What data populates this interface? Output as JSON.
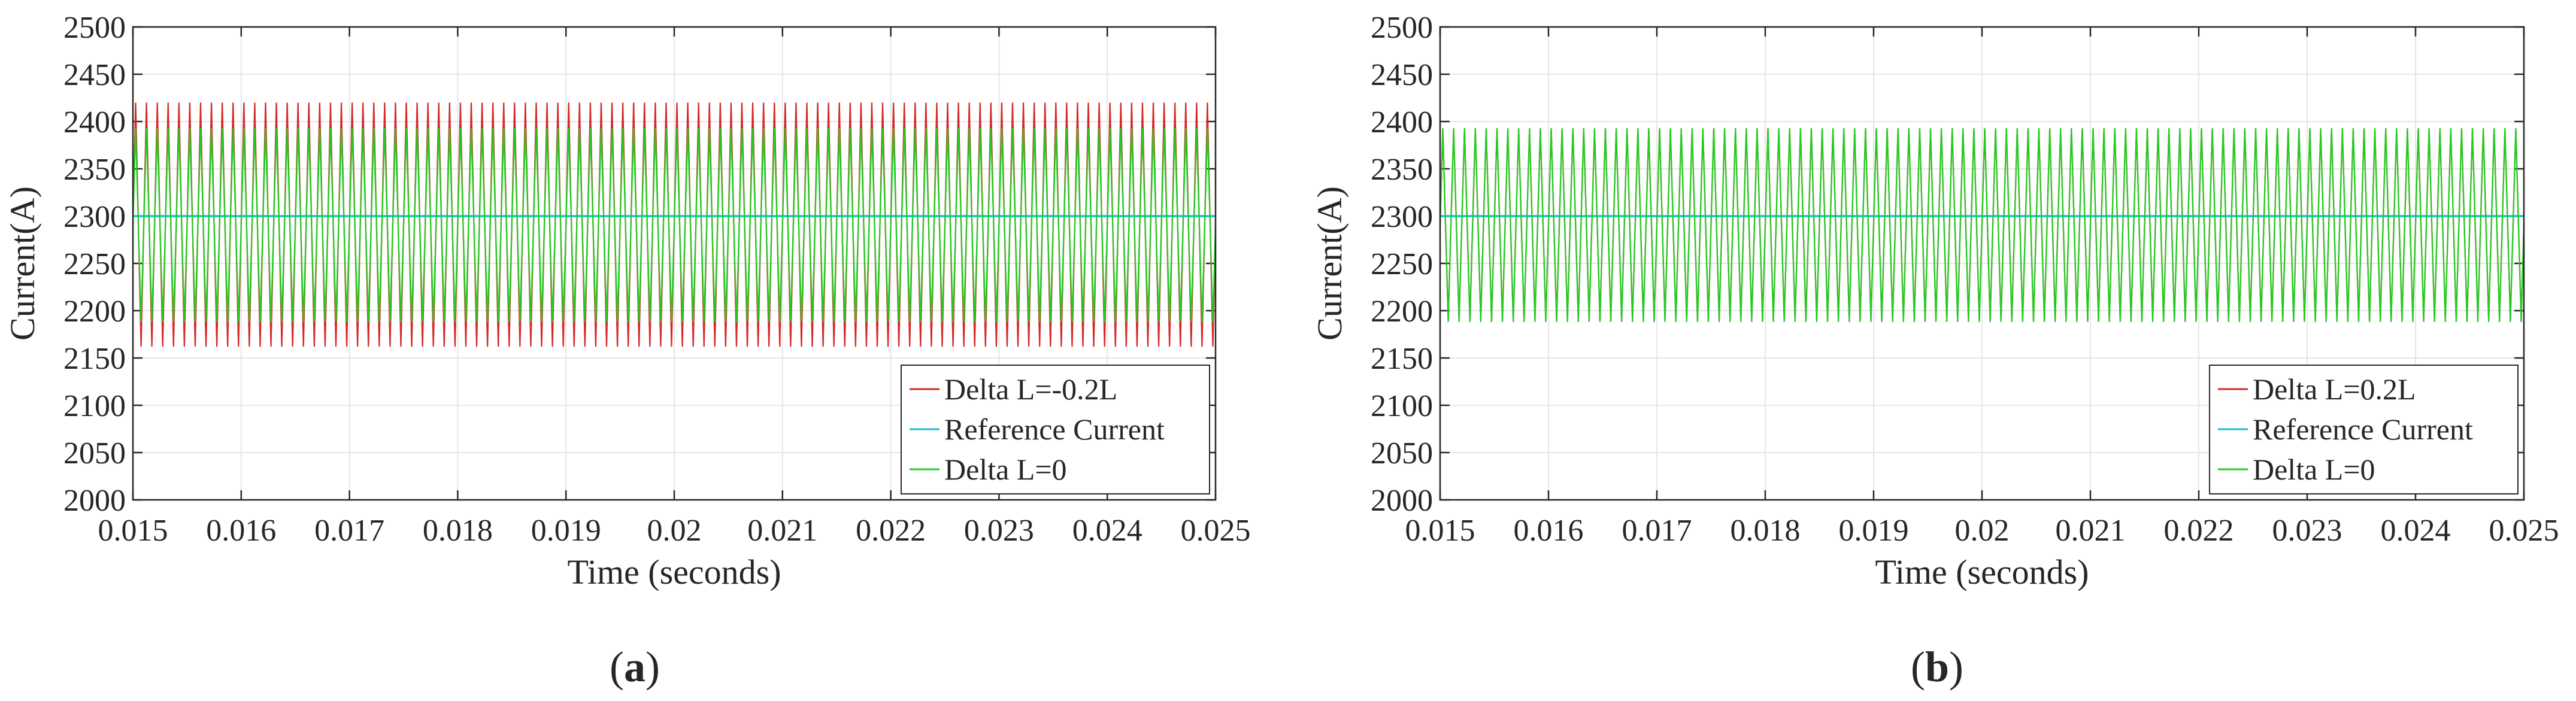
{
  "chart_data": [
    {
      "type": "line",
      "xlabel": "Time (seconds)",
      "ylabel": "Current(A)",
      "xlim": [
        0.015,
        0.025
      ],
      "ylim": [
        2000,
        2500
      ],
      "x_ticks": [
        "0.015",
        "0.016",
        "0.017",
        "0.018",
        "0.019",
        "0.02",
        "0.021",
        "0.022",
        "0.023",
        "0.024",
        "0.025"
      ],
      "y_ticks": [
        "2000",
        "2050",
        "2100",
        "2150",
        "2200",
        "2250",
        "2300",
        "2350",
        "2400",
        "2450",
        "2500"
      ],
      "grid": true,
      "legend_position": "bottom-right",
      "caption": "a",
      "series": [
        {
          "name": "Delta L=-0.2L",
          "color": "#d62728",
          "style": "triangular-ripple",
          "min": 2162,
          "max": 2420,
          "period": 0.0001
        },
        {
          "name": "Reference Current",
          "color": "#17becf",
          "style": "constant",
          "value": 2300
        },
        {
          "name": "Delta L=0",
          "color": "#22cc22",
          "style": "triangular-ripple",
          "min": 2188,
          "max": 2393,
          "period": 0.0001
        }
      ]
    },
    {
      "type": "line",
      "xlabel": "Time (seconds)",
      "ylabel": "Current(A)",
      "xlim": [
        0.015,
        0.025
      ],
      "ylim": [
        2000,
        2500
      ],
      "x_ticks": [
        "0.015",
        "0.016",
        "0.017",
        "0.018",
        "0.019",
        "0.02",
        "0.021",
        "0.022",
        "0.023",
        "0.024",
        "0.025"
      ],
      "y_ticks": [
        "2000",
        "2050",
        "2100",
        "2150",
        "2200",
        "2250",
        "2300",
        "2350",
        "2400",
        "2450",
        "2500"
      ],
      "grid": true,
      "legend_position": "bottom-right",
      "caption": "b",
      "series": [
        {
          "name": "Delta L=0.2L",
          "color": "#d62728",
          "style": "triangular-ripple",
          "min": 2190,
          "max": 2392,
          "period": 0.0001
        },
        {
          "name": "Reference Current",
          "color": "#17becf",
          "style": "constant",
          "value": 2300
        },
        {
          "name": "Delta L=0",
          "color": "#22cc22",
          "style": "triangular-ripple",
          "min": 2188,
          "max": 2393,
          "period": 0.0001
        }
      ]
    }
  ]
}
